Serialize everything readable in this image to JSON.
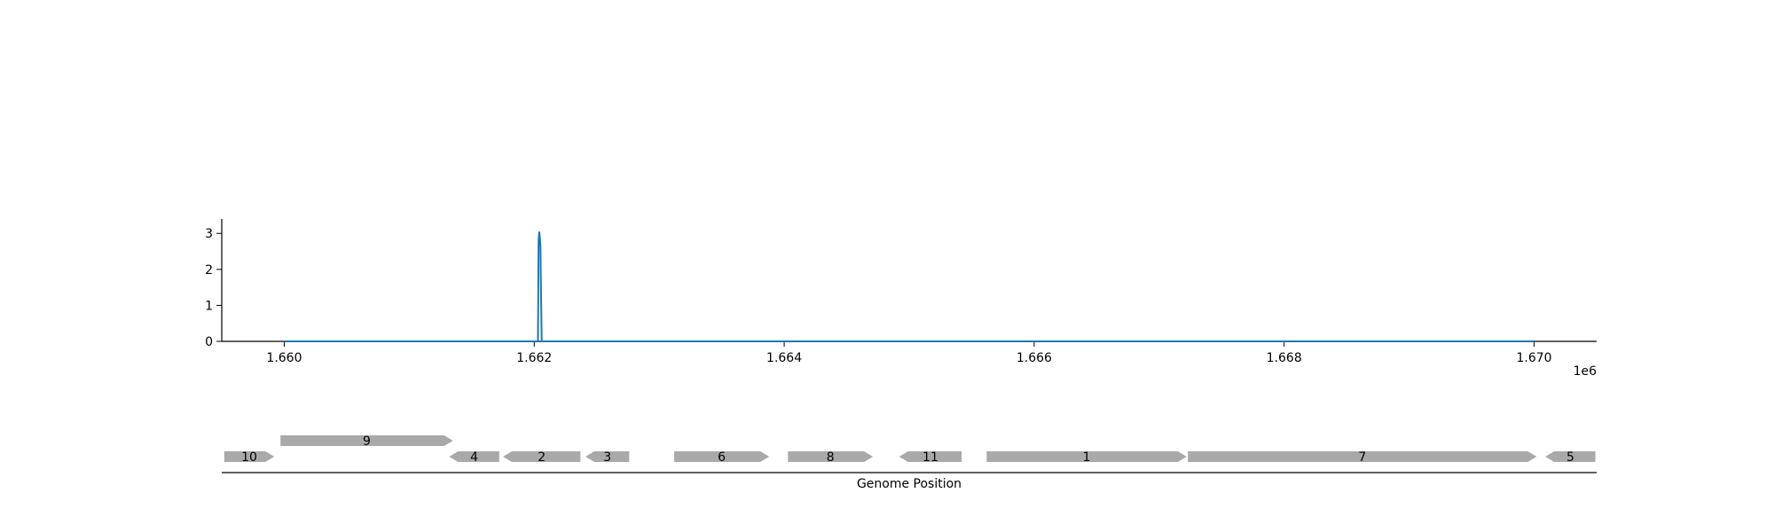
{
  "chart_data": [
    {
      "type": "line",
      "x_offset_label": "1e6",
      "xlim": [
        1659500,
        1670500
      ],
      "ylim": [
        0,
        3.4
      ],
      "x_ticks": [
        1660000,
        1662000,
        1664000,
        1666000,
        1668000,
        1670000
      ],
      "x_tick_labels": [
        "1.660",
        "1.662",
        "1.664",
        "1.666",
        "1.668",
        "1.670"
      ],
      "y_ticks": [
        0,
        1,
        2,
        3
      ],
      "y_tick_labels": [
        "0",
        "1",
        "2",
        "3"
      ],
      "series": [
        {
          "color": "#1f77b4",
          "x": [
            1660000,
            1662030,
            1662035,
            1662040,
            1662045,
            1662050,
            1662055,
            1662060,
            1670000
          ],
          "y": [
            0,
            0,
            2.8,
            3.05,
            2.9,
            2.6,
            1.2,
            0,
            0
          ]
        }
      ]
    },
    {
      "type": "gene-track",
      "xlabel": "Genome Position",
      "feature_color": "#a9a9a9",
      "genes": [
        {
          "label": "10",
          "start": 1659520,
          "end": 1659920,
          "strand": "+",
          "row": 0
        },
        {
          "label": "9",
          "start": 1659970,
          "end": 1661350,
          "strand": "+",
          "row": 1
        },
        {
          "label": "4",
          "start": 1661320,
          "end": 1661720,
          "strand": "-",
          "row": 0
        },
        {
          "label": "2",
          "start": 1661750,
          "end": 1662370,
          "strand": "-",
          "row": 0
        },
        {
          "label": "3",
          "start": 1662410,
          "end": 1662760,
          "strand": "-",
          "row": 0
        },
        {
          "label": "6",
          "start": 1663120,
          "end": 1663880,
          "strand": "+",
          "row": 0
        },
        {
          "label": "8",
          "start": 1664030,
          "end": 1664710,
          "strand": "+",
          "row": 0
        },
        {
          "label": "11",
          "start": 1664920,
          "end": 1665420,
          "strand": "-",
          "row": 0
        },
        {
          "label": "1",
          "start": 1665620,
          "end": 1667220,
          "strand": "+",
          "row": 0
        },
        {
          "label": "7",
          "start": 1667230,
          "end": 1670020,
          "strand": "+",
          "row": 0
        },
        {
          "label": "5",
          "start": 1670090,
          "end": 1670490,
          "strand": "-",
          "row": 0
        }
      ]
    }
  ]
}
